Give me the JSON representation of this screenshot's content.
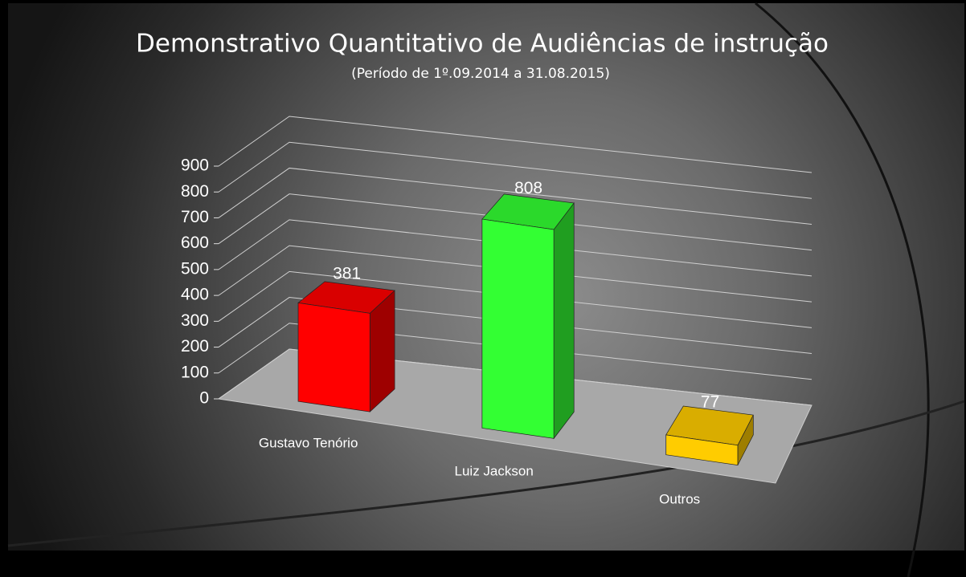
{
  "chart_data": {
    "type": "bar3d",
    "title": "Demonstrativo Quantitativo de Audiências de instrução",
    "subtitle": "(Período de 1º.09.2014  a  31.08.2015)",
    "categories": [
      "Gustavo Tenório",
      "Luiz Jackson",
      "Outros"
    ],
    "values": [
      381,
      808,
      77
    ],
    "colors": [
      "#ff0000",
      "#33ff33",
      "#ffcc00"
    ],
    "ylim": [
      0,
      900
    ],
    "yticks": [
      0,
      100,
      200,
      300,
      400,
      500,
      600,
      700,
      800,
      900
    ],
    "grid": true
  }
}
